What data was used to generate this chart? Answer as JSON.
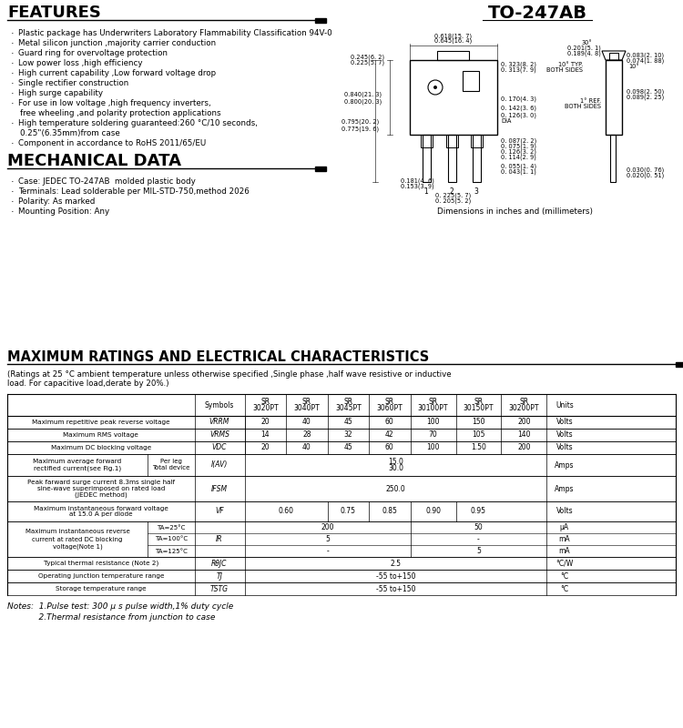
{
  "features_title": "FEATURES",
  "features": [
    "Plastic package has Underwriters Laboratory Flammability Classification 94V-0",
    "Metal silicon junction ,majority carrier conduction",
    "Guard ring for overvoltage protection",
    "Low power loss ,high efficiency",
    "High current capability ,Low forward voltage drop",
    "Single rectifier construction",
    "High surge capability",
    "For use in low voltage ,high frequency inverters,",
    "    free wheeling ,and polarity protection applications",
    "High temperature soldering guaranteed:260 °C/10 seconds,",
    "    0.25\"(6.35mm)from case",
    "Component in accordance to RoHS 2011/65/EU"
  ],
  "mech_title": "MECHANICAL DATA",
  "mech": [
    "Case: JEDEC TO-247AB  molded plastic body",
    "Terminals: Lead solderable per MIL-STD-750,method 2026",
    "Polarity: As marked",
    "Mounting Position: Any"
  ],
  "package_label": "TO-247AB",
  "dim_label": "Dimensions in inches and (millimeters)",
  "ratings_title": "MAXIMUM RATINGS AND ELECTRICAL CHARACTERISTICS",
  "ratings_note": "(Ratings at 25 °C ambient temperature unless otherwise specified ,Single phase ,half wave resistive or inductive\nload. For capacitive load,derate by 20%.)",
  "notes": [
    "Notes:  1.Pulse test: 300 μ s pulse width,1% duty cycle",
    "            2.Thermal resistance from junction to case"
  ]
}
